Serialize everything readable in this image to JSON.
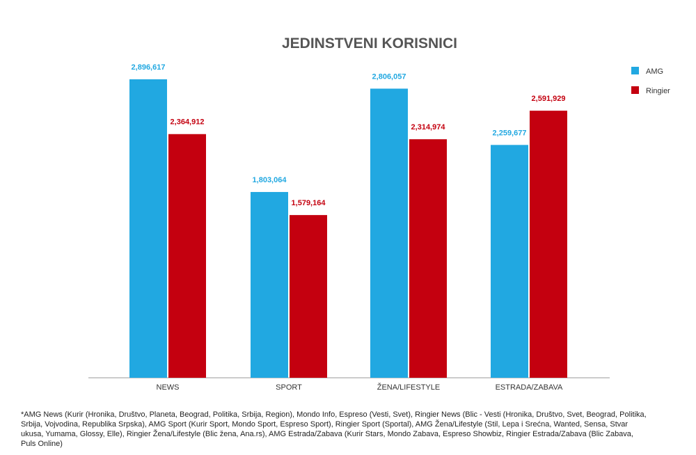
{
  "chart_data": {
    "type": "bar",
    "title": "JEDINSTVENI KORISNICI",
    "categories": [
      "NEWS",
      "SPORT",
      "ŽENA/LIFESTYLE",
      "ESTRADA/ZABAVA"
    ],
    "series": [
      {
        "name": "AMG",
        "color": "#21a8e1",
        "values": [
          2896617,
          1803064,
          2806057,
          2259677
        ],
        "labels": [
          "2,896,617",
          "1,803,064",
          "2,806,057",
          "2,259,677"
        ]
      },
      {
        "name": "Ringier",
        "color": "#c4000f",
        "values": [
          2364912,
          1579164,
          2314974,
          2591929
        ],
        "labels": [
          "2,364,912",
          "1,579,164",
          "2,314,974",
          "2,591,929"
        ]
      }
    ],
    "ylim": [
      0,
      2896617
    ],
    "legend_position": "top-right",
    "xlabel": "",
    "ylabel": ""
  },
  "footnote": "*AMG News (Kurir (Hronika, Društvo, Planeta, Beograd, Politika, Srbija, Region), Mondo Info, Espreso (Vesti, Svet), Ringier News (Blic - Vesti (Hronika, Društvo, Svet, Beograd, Politika, Srbija, Vojvodina, Republika Srpska), AMG Sport (Kurir Sport, Mondo Sport, Espreso Sport), Ringier Sport (Sportal), AMG Žena/Lifestyle (Stil, Lepa i Srećna, Wanted, Sensa, Stvar ukusa, Yumama, Glossy, Elle), Ringier Žena/Lifestyle (Blic žena, Ana.rs), AMG Estrada/Zabava (Kurir Stars, Mondo Zabava, Espreso Showbiz, Ringier Estrada/Zabava (Blic Zabava, Puls Online)"
}
